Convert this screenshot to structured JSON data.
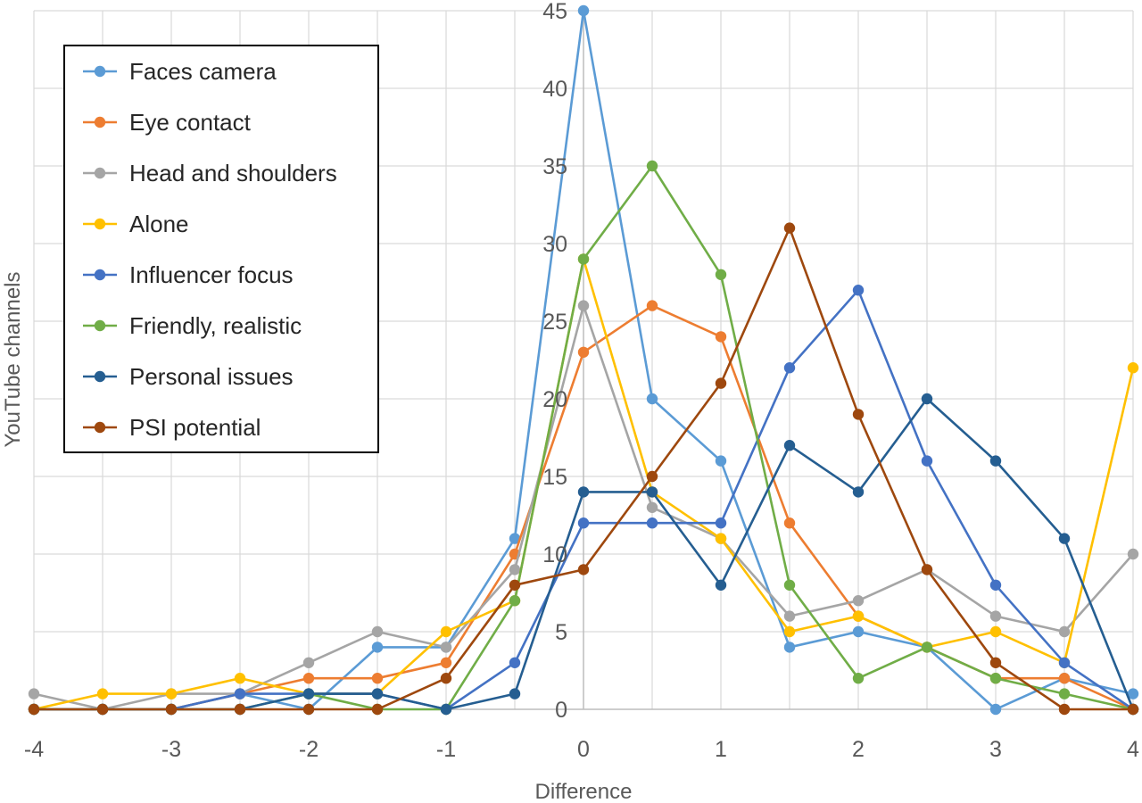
{
  "chart_data": {
    "type": "line",
    "xlabel": "Difference",
    "ylabel": "YouTube channels",
    "xlim": [
      -4,
      4
    ],
    "ylim": [
      0,
      45
    ],
    "x_ticks": [
      "-4",
      "-3",
      "-2",
      "-1",
      "0",
      "1",
      "2",
      "3",
      "4"
    ],
    "y_ticks": [
      "0",
      "5",
      "10",
      "15",
      "20",
      "25",
      "30",
      "35",
      "40",
      "45"
    ],
    "grid": true,
    "legend_position": "top-left",
    "x": [
      -4,
      -3.5,
      -3,
      -2.5,
      -2,
      -1.5,
      -1,
      -0.5,
      0,
      0.5,
      1,
      1.5,
      2,
      2.5,
      3,
      3.5,
      4
    ],
    "series": [
      {
        "name": "Faces camera",
        "color": "#5B9BD5",
        "values": [
          0,
          0,
          0,
          1,
          0,
          4,
          4,
          11,
          45,
          20,
          16,
          4,
          5,
          4,
          0,
          2,
          1
        ]
      },
      {
        "name": "Eye contact",
        "color": "#ED7D31",
        "values": [
          0,
          0,
          0,
          1,
          2,
          2,
          3,
          10,
          23,
          26,
          24,
          12,
          6,
          4,
          2,
          2,
          0
        ]
      },
      {
        "name": "Head and shoulders",
        "color": "#A5A5A5",
        "values": [
          1,
          0,
          1,
          1,
          3,
          5,
          4,
          9,
          26,
          13,
          11,
          6,
          7,
          9,
          6,
          5,
          10
        ]
      },
      {
        "name": "Alone",
        "color": "#FFC000",
        "values": [
          0,
          1,
          1,
          2,
          1,
          1,
          5,
          7,
          29,
          14,
          11,
          5,
          6,
          4,
          5,
          3,
          22
        ]
      },
      {
        "name": "Influencer focus",
        "color": "#4472C4",
        "values": [
          0,
          0,
          0,
          1,
          1,
          1,
          0,
          3,
          12,
          12,
          12,
          22,
          27,
          16,
          8,
          3,
          0
        ]
      },
      {
        "name": "Friendly, realistic",
        "color": "#70AD47",
        "values": [
          0,
          0,
          0,
          0,
          1,
          0,
          0,
          7,
          29,
          35,
          28,
          8,
          2,
          4,
          2,
          1,
          0
        ]
      },
      {
        "name": "Personal issues",
        "color": "#255E91",
        "values": [
          0,
          0,
          0,
          0,
          1,
          1,
          0,
          1,
          14,
          14,
          8,
          17,
          14,
          20,
          16,
          11,
          0
        ]
      },
      {
        "name": "PSI potential",
        "color": "#9E480E",
        "values": [
          0,
          0,
          0,
          0,
          0,
          0,
          2,
          8,
          9,
          15,
          21,
          31,
          19,
          9,
          3,
          0,
          0
        ]
      }
    ]
  }
}
